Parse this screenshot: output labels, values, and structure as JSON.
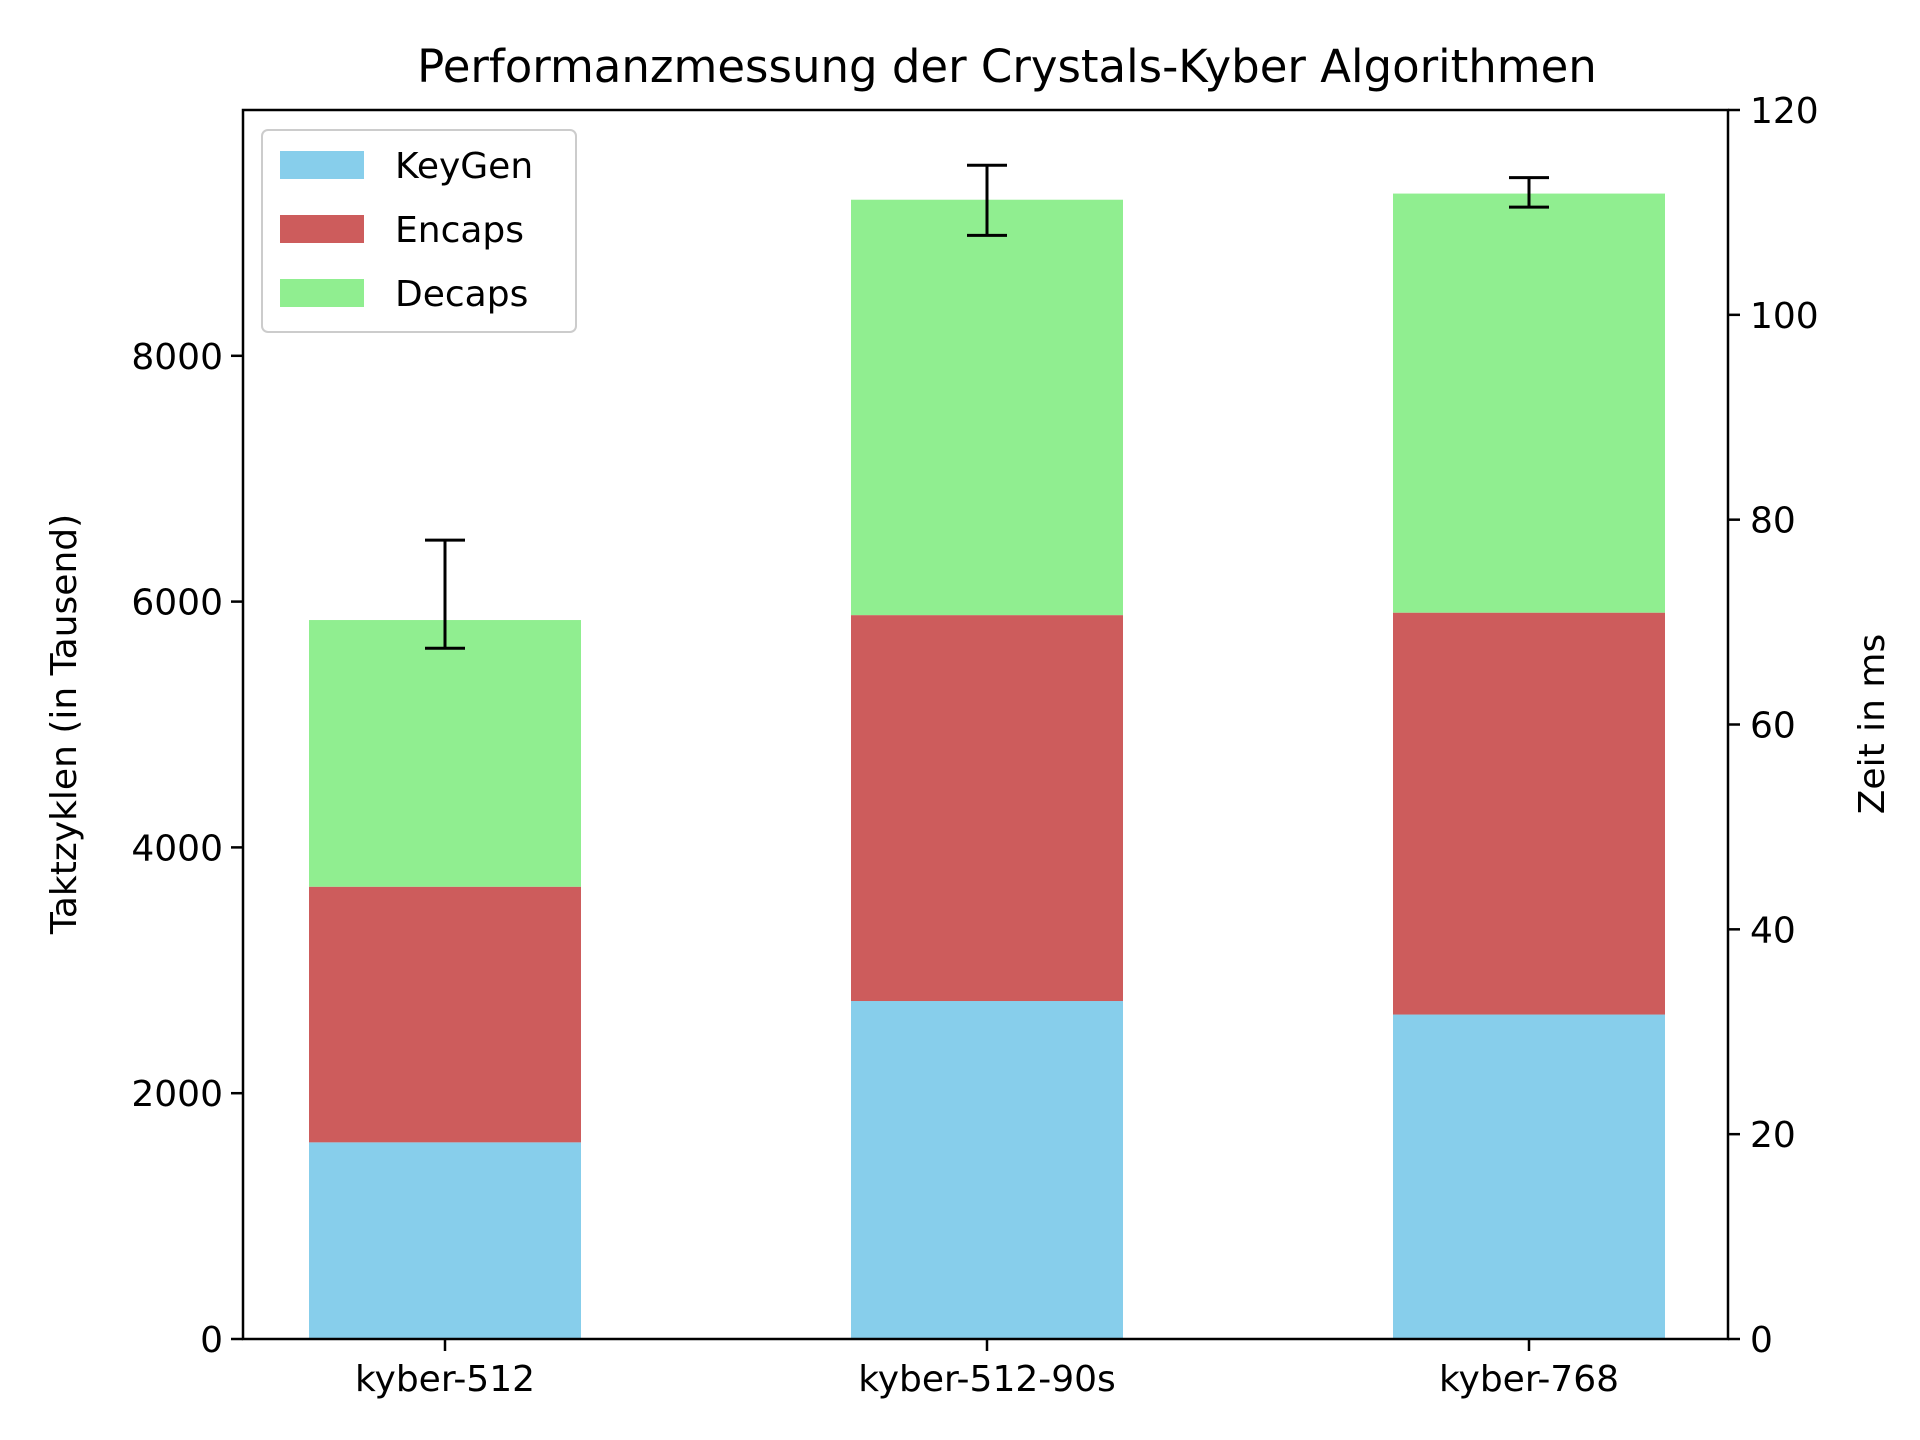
{
  "chart_data": {
    "type": "bar",
    "stacked": true,
    "title": "Performanzmessung der Crystals-Kyber Algorithmen",
    "xlabel": "",
    "ylabel": "Taktzyklen (in Tausend)",
    "ylabel_right": "Zeit in ms",
    "categories": [
      "kyber-512",
      "kyber-512-90s",
      "kyber-768"
    ],
    "series": [
      {
        "name": "KeyGen",
        "color": "#87ceeb",
        "values": [
          1600,
          2750,
          2640
        ]
      },
      {
        "name": "Encaps",
        "color": "#cd5c5c",
        "values": [
          2080,
          3140,
          3270
        ]
      },
      {
        "name": "Decaps",
        "color": "#90ee90",
        "values": [
          2170,
          3380,
          3410
        ]
      }
    ],
    "errorbars": [
      {
        "category": "kyber-512",
        "low": 5620,
        "high": 6500
      },
      {
        "category": "kyber-512-90s",
        "low": 8980,
        "high": 9550
      },
      {
        "category": "kyber-768",
        "low": 9210,
        "high": 9450
      }
    ],
    "ylim": [
      0,
      10000
    ],
    "yticks": [
      "0",
      "2000",
      "4000",
      "6000",
      "8000"
    ],
    "ylim_right": [
      0,
      120
    ],
    "yticks_right": [
      "0",
      "20",
      "40",
      "60",
      "80",
      "100",
      "120"
    ],
    "legend_position": "top-left",
    "grid": false
  }
}
